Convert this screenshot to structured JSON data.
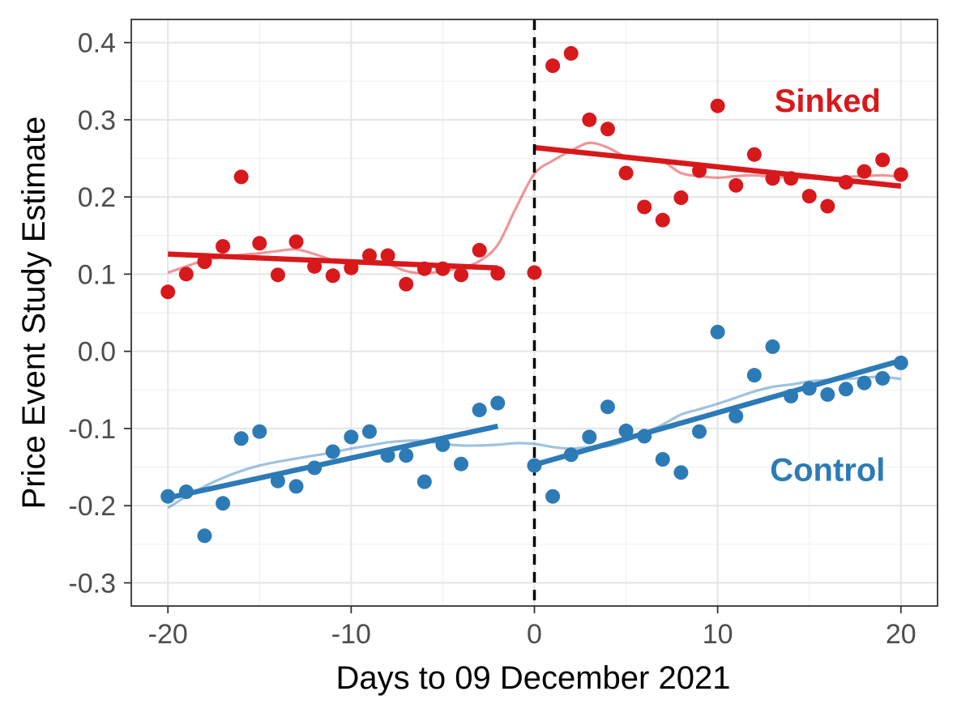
{
  "chart_data": {
    "type": "scatter",
    "title": "",
    "xlabel": "Days to 09 December 2021",
    "ylabel": "Price Event Study Estimate",
    "xlim": [
      -22,
      22
    ],
    "ylim": [
      -0.33,
      0.43
    ],
    "xticks": [
      -20,
      -10,
      0,
      10,
      20
    ],
    "xtick_labels": [
      "-20",
      "-10",
      "0",
      "10",
      "20"
    ],
    "yticks": [
      -0.3,
      -0.2,
      -0.1,
      0.0,
      0.1,
      0.2,
      0.3,
      0.4
    ],
    "ytick_labels": [
      "-0.3",
      "-0.2",
      "-0.1",
      "0.0",
      "0.1",
      "0.2",
      "0.3",
      "0.4"
    ],
    "grid": true,
    "event_line": {
      "x": 0,
      "style": "dashed",
      "color": "#000000"
    },
    "series": [
      {
        "name": "Sinked",
        "label": "Sinked",
        "label_at": [
          16,
          0.325
        ],
        "color": "#D7191C",
        "x": [
          -20,
          -19,
          -18,
          -17,
          -16,
          -15,
          -14,
          -13,
          -12,
          -11,
          -10,
          -9,
          -8,
          -7,
          -6,
          -5,
          -4,
          -3,
          -2,
          0,
          1,
          2,
          3,
          4,
          5,
          6,
          7,
          8,
          9,
          10,
          11,
          12,
          13,
          14,
          15,
          16,
          17,
          18,
          19,
          20
        ],
        "y": [
          0.077,
          0.1,
          0.116,
          0.136,
          0.226,
          0.14,
          0.099,
          0.142,
          0.11,
          0.098,
          0.108,
          0.124,
          0.124,
          0.087,
          0.107,
          0.107,
          0.099,
          0.131,
          0.101,
          0.102,
          0.37,
          0.386,
          0.3,
          0.288,
          0.231,
          0.187,
          0.17,
          0.199,
          0.234,
          0.318,
          0.215,
          0.255,
          0.224,
          0.224,
          0.201,
          0.188,
          0.219,
          0.233,
          0.248,
          0.229
        ],
        "fit_pre": {
          "x": [
            -20,
            -2
          ],
          "y": [
            0.126,
            0.108
          ]
        },
        "fit_post": {
          "x": [
            0,
            20
          ],
          "y": [
            0.264,
            0.214
          ]
        },
        "smooth": {
          "x": [
            -20,
            -19,
            -18,
            -17,
            -16,
            -15,
            -14,
            -13,
            -12,
            -11,
            -10,
            -9,
            -8,
            -7,
            -6,
            -5,
            -4,
            -3,
            -2,
            -1,
            0,
            1,
            2,
            3,
            4,
            5,
            6,
            7,
            8,
            9,
            10,
            11,
            12,
            13,
            14,
            15,
            16,
            17,
            18,
            19,
            20
          ],
          "y": [
            0.102,
            0.11,
            0.118,
            0.122,
            0.125,
            0.127,
            0.13,
            0.132,
            0.126,
            0.118,
            0.113,
            0.117,
            0.113,
            0.104,
            0.101,
            0.104,
            0.108,
            0.117,
            0.138,
            0.186,
            0.23,
            0.247,
            0.26,
            0.27,
            0.264,
            0.252,
            0.248,
            0.246,
            0.231,
            0.227,
            0.225,
            0.227,
            0.228,
            0.226,
            0.225,
            0.224,
            0.224,
            0.226,
            0.227,
            0.228,
            0.226
          ]
        }
      },
      {
        "name": "Control",
        "label": "Control",
        "label_at": [
          16,
          -0.153
        ],
        "color": "#2C7BB6",
        "x": [
          -20,
          -19,
          -18,
          -17,
          -16,
          -15,
          -14,
          -13,
          -12,
          -11,
          -10,
          -9,
          -8,
          -7,
          -6,
          -5,
          -4,
          -3,
          -2,
          0,
          1,
          2,
          3,
          4,
          5,
          6,
          7,
          8,
          9,
          10,
          11,
          12,
          13,
          14,
          15,
          16,
          17,
          18,
          19,
          20
        ],
        "y": [
          -0.188,
          -0.182,
          -0.239,
          -0.197,
          -0.113,
          -0.104,
          -0.168,
          -0.175,
          -0.151,
          -0.13,
          -0.111,
          -0.104,
          -0.135,
          -0.135,
          -0.169,
          -0.121,
          -0.146,
          -0.076,
          -0.067,
          -0.148,
          -0.188,
          -0.134,
          -0.111,
          -0.072,
          -0.103,
          -0.11,
          -0.14,
          -0.157,
          -0.104,
          0.025,
          -0.084,
          -0.031,
          0.006,
          -0.058,
          -0.048,
          -0.056,
          -0.049,
          -0.041,
          -0.035,
          -0.015
        ],
        "fit_pre": {
          "x": [
            -20,
            -2
          ],
          "y": [
            -0.19,
            -0.097
          ]
        },
        "fit_post": {
          "x": [
            0,
            20
          ],
          "y": [
            -0.147,
            -0.012
          ]
        },
        "smooth": {
          "x": [
            -20,
            -19,
            -18,
            -17,
            -16,
            -15,
            -14,
            -13,
            -12,
            -11,
            -10,
            -9,
            -8,
            -7,
            -6,
            -5,
            -4,
            -3,
            -2,
            -1,
            0,
            1,
            2,
            3,
            4,
            5,
            6,
            7,
            8,
            9,
            10,
            11,
            12,
            13,
            14,
            15,
            16,
            17,
            18,
            19,
            20
          ],
          "y": [
            -0.203,
            -0.188,
            -0.175,
            -0.164,
            -0.155,
            -0.148,
            -0.143,
            -0.139,
            -0.135,
            -0.131,
            -0.126,
            -0.122,
            -0.118,
            -0.116,
            -0.116,
            -0.12,
            -0.122,
            -0.122,
            -0.121,
            -0.119,
            -0.12,
            -0.124,
            -0.126,
            -0.124,
            -0.123,
            -0.116,
            -0.106,
            -0.095,
            -0.082,
            -0.075,
            -0.068,
            -0.06,
            -0.052,
            -0.046,
            -0.043,
            -0.039,
            -0.037,
            -0.036,
            -0.034,
            -0.033,
            -0.036
          ]
        }
      }
    ]
  }
}
